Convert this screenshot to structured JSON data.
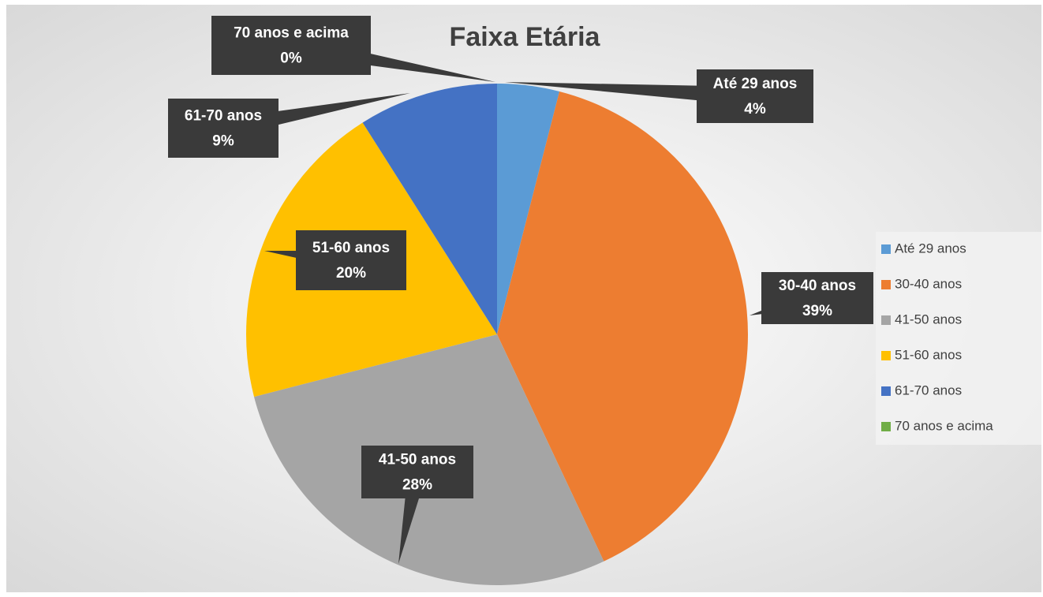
{
  "chart_data": {
    "type": "pie",
    "title": "Faixa Etária",
    "categories": [
      "Até 29 anos",
      "30-40 anos",
      "41-50 anos",
      "51-60 anos",
      "61-70 anos",
      "70 anos e acima"
    ],
    "values": [
      4,
      39,
      28,
      20,
      9,
      0
    ],
    "value_labels": [
      "4%",
      "39%",
      "28%",
      "20%",
      "9%",
      "0%"
    ],
    "colors": [
      "#5b9bd5",
      "#ed7d31",
      "#a5a5a5",
      "#ffc000",
      "#4472c4",
      "#70ad47"
    ],
    "legend": "right"
  }
}
